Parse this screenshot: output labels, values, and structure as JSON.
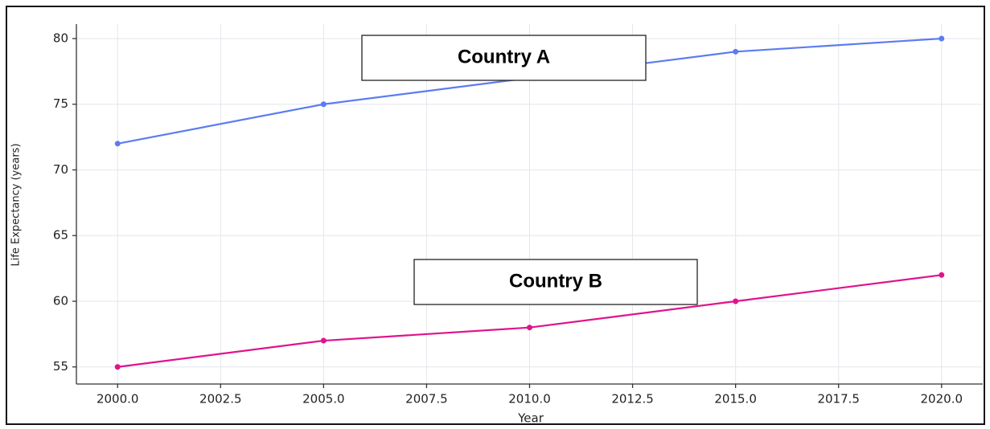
{
  "chart_data": {
    "type": "line",
    "x_label": "Year",
    "y_label": "Life Expectancy (years)",
    "x": [
      2000,
      2005,
      2010,
      2015,
      2020
    ],
    "series": [
      {
        "name": "Country A",
        "color": "#5b7cf0",
        "values": [
          72,
          75,
          77,
          79,
          80
        ]
      },
      {
        "name": "Country B",
        "color": "#e0138c",
        "values": [
          55,
          57,
          58,
          60,
          62
        ]
      }
    ],
    "xlim": [
      1999,
      2021
    ],
    "ylim": [
      53.7,
      81.1
    ],
    "xticks": [
      {
        "value": 2000,
        "label": "2000.0"
      },
      {
        "value": 2002.5,
        "label": "2002.5"
      },
      {
        "value": 2005,
        "label": "2005.0"
      },
      {
        "value": 2007.5,
        "label": "2007.5"
      },
      {
        "value": 2010,
        "label": "2010.0"
      },
      {
        "value": 2012.5,
        "label": "2012.5"
      },
      {
        "value": 2015,
        "label": "2015.0"
      },
      {
        "value": 2017.5,
        "label": "2017.5"
      },
      {
        "value": 2020,
        "label": "2020.0"
      }
    ],
    "yticks": [
      55,
      60,
      65,
      70,
      75,
      80
    ],
    "grid": true
  }
}
